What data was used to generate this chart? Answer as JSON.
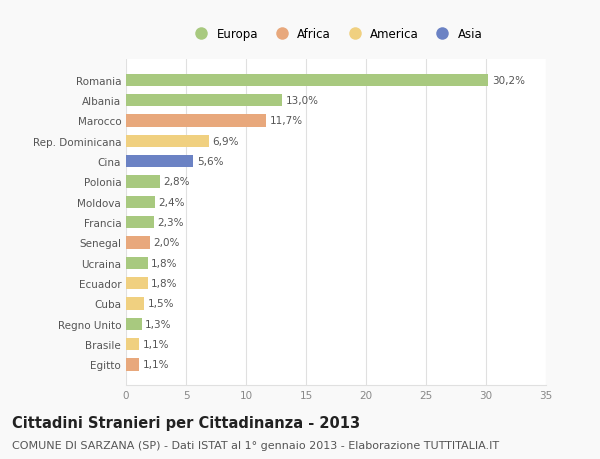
{
  "countries": [
    "Romania",
    "Albania",
    "Marocco",
    "Rep. Dominicana",
    "Cina",
    "Polonia",
    "Moldova",
    "Francia",
    "Senegal",
    "Ucraina",
    "Ecuador",
    "Cuba",
    "Regno Unito",
    "Brasile",
    "Egitto"
  ],
  "values": [
    30.2,
    13.0,
    11.7,
    6.9,
    5.6,
    2.8,
    2.4,
    2.3,
    2.0,
    1.8,
    1.8,
    1.5,
    1.3,
    1.1,
    1.1
  ],
  "labels": [
    "30,2%",
    "13,0%",
    "11,7%",
    "6,9%",
    "5,6%",
    "2,8%",
    "2,4%",
    "2,3%",
    "2,0%",
    "1,8%",
    "1,8%",
    "1,5%",
    "1,3%",
    "1,1%",
    "1,1%"
  ],
  "continents": [
    "Europa",
    "Europa",
    "Africa",
    "America",
    "Asia",
    "Europa",
    "Europa",
    "Europa",
    "Africa",
    "Europa",
    "America",
    "America",
    "Europa",
    "America",
    "Africa"
  ],
  "colors": {
    "Europa": "#a8c97f",
    "Africa": "#e8a87c",
    "America": "#f0d080",
    "Asia": "#6b82c4"
  },
  "xlim": [
    0,
    35
  ],
  "xticks": [
    0,
    5,
    10,
    15,
    20,
    25,
    30,
    35
  ],
  "title": "Cittadini Stranieri per Cittadinanza - 2013",
  "subtitle": "COMUNE DI SARZANA (SP) - Dati ISTAT al 1° gennaio 2013 - Elaborazione TUTTITALIA.IT",
  "background_color": "#f9f9f9",
  "plot_bg_color": "#ffffff",
  "grid_color": "#e0e0e0",
  "bar_height": 0.6,
  "title_fontsize": 10.5,
  "subtitle_fontsize": 8,
  "label_fontsize": 7.5,
  "tick_fontsize": 7.5,
  "legend_fontsize": 8.5
}
